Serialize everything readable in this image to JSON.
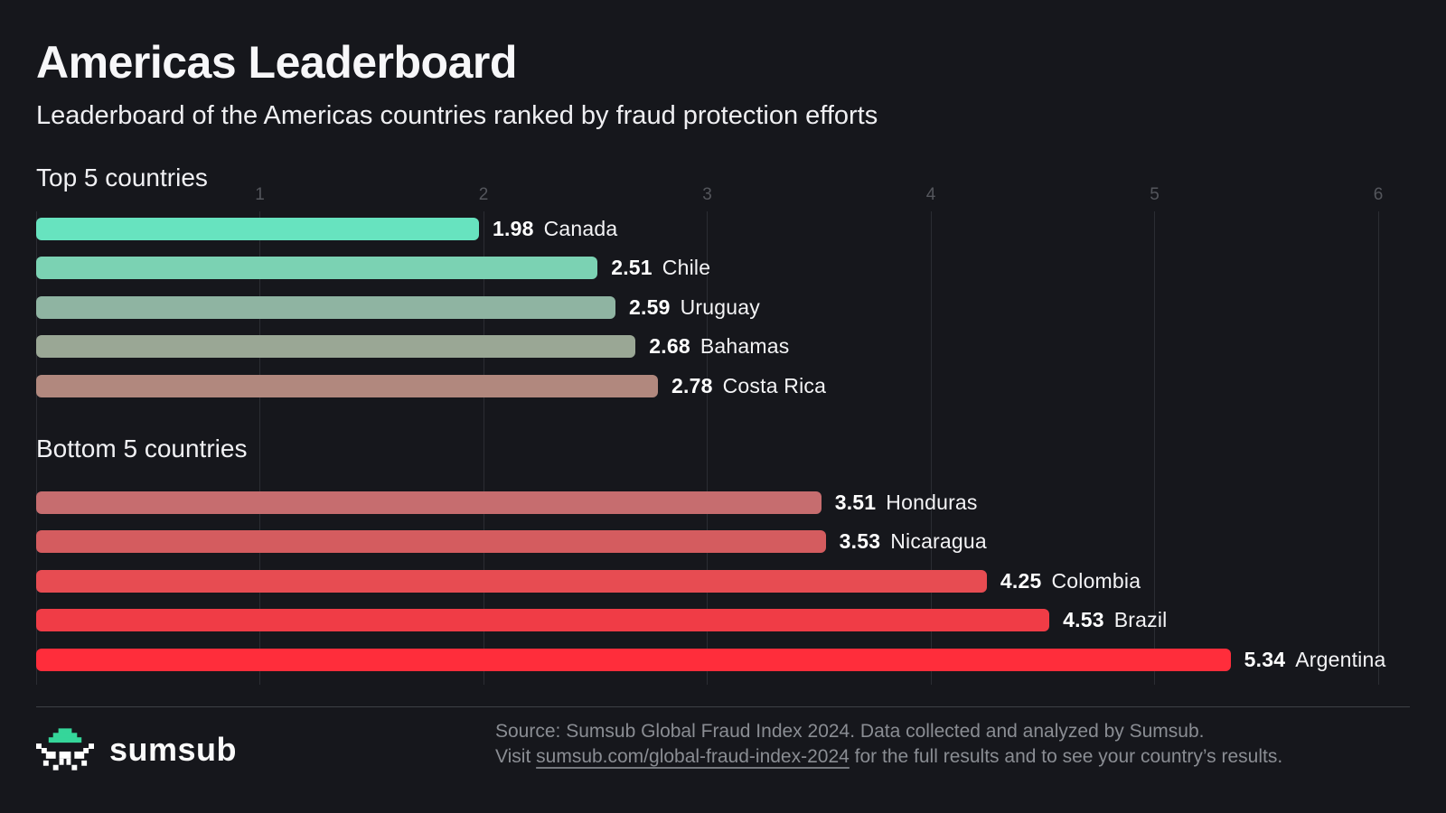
{
  "header": {
    "title": "Americas Leaderboard",
    "subtitle": "Leaderboard of the Americas countries ranked by fraud protection efforts"
  },
  "chart_data": {
    "type": "bar",
    "orientation": "horizontal",
    "title": "Americas Leaderboard",
    "xlabel": "",
    "ylabel": "",
    "xlim": [
      0,
      6.25
    ],
    "x_ticks": [
      1,
      2,
      3,
      4,
      5,
      6
    ],
    "grid": "vertical",
    "value_label_format": "2-decimals",
    "sections": [
      {
        "label": "Top 5 countries",
        "rows": [
          {
            "country": "Canada",
            "value": 1.98,
            "color": "#67e3bf"
          },
          {
            "country": "Chile",
            "value": 2.51,
            "color": "#7bd2b3"
          },
          {
            "country": "Uruguay",
            "value": 2.59,
            "color": "#8fb4a2"
          },
          {
            "country": "Bahamas",
            "value": 2.68,
            "color": "#9aa795"
          },
          {
            "country": "Costa Rica",
            "value": 2.78,
            "color": "#b1887e"
          }
        ]
      },
      {
        "label": "Bottom 5 countries",
        "rows": [
          {
            "country": "Honduras",
            "value": 3.51,
            "color": "#c66d6f"
          },
          {
            "country": "Nicaragua",
            "value": 3.53,
            "color": "#d45c5f"
          },
          {
            "country": "Colombia",
            "value": 4.25,
            "color": "#e74c52"
          },
          {
            "country": "Brazil",
            "value": 4.53,
            "color": "#f03c46"
          },
          {
            "country": "Argentina",
            "value": 5.34,
            "color": "#ff2d3b"
          }
        ]
      }
    ],
    "colors": {
      "background": "#16171c",
      "gridline": "#2b2d33",
      "tick_label": "#54565c",
      "value_label": "#ffffff",
      "accent_mint": "#35d69a",
      "accent_red": "#ff2d3b"
    }
  },
  "footer": {
    "brand": "sumsub",
    "source_line": "Source: Sumsub Global Fraud Index 2024. Data collected and analyzed by Sumsub.",
    "visit_prefix": "Visit ",
    "link_text": "sumsub.com/global-fraud-index-2024",
    "visit_suffix": " for the full results and to see your country’s results."
  }
}
